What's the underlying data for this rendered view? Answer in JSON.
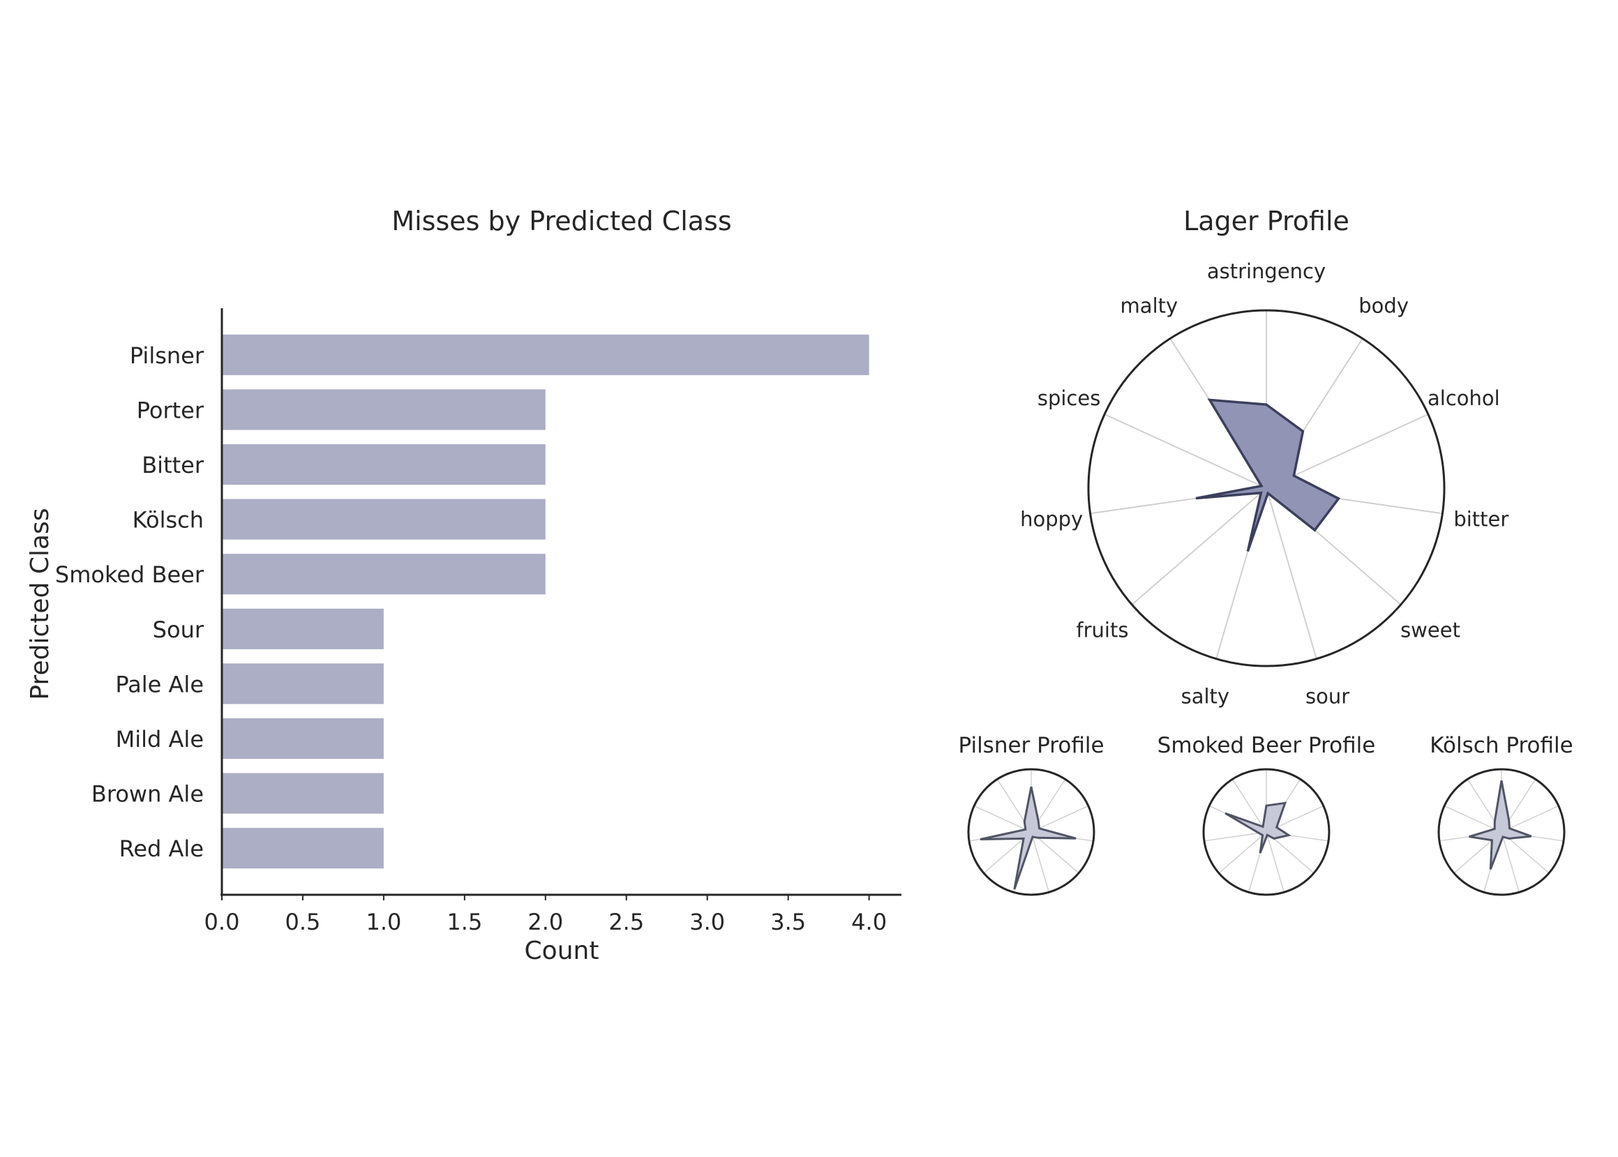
{
  "colors": {
    "bar": "#abaec4",
    "axis": "#262626",
    "text": "#262626",
    "grid": "#d0d0d0",
    "main_fill": "#9194b5",
    "main_stroke": "#3c3f5c",
    "small_fill": "#c7c8d8",
    "small_stroke": "#505464"
  },
  "chart_data": [
    {
      "type": "bar",
      "orientation": "horizontal",
      "title": "Misses by Predicted Class",
      "xlabel": "Count",
      "ylabel": "Predicted Class",
      "categories": [
        "Pilsner",
        "Porter",
        "Bitter",
        "Kölsch",
        "Smoked Beer",
        "Sour",
        "Pale Ale",
        "Mild Ale",
        "Brown Ale",
        "Red Ale"
      ],
      "values": [
        4,
        2,
        2,
        2,
        2,
        1,
        1,
        1,
        1,
        1
      ],
      "xlim": [
        0,
        4.2
      ],
      "xticks": [
        "0.0",
        "0.5",
        "1.0",
        "1.5",
        "2.0",
        "2.5",
        "3.0",
        "3.5",
        "4.0"
      ],
      "grid": false
    },
    {
      "type": "radar",
      "title": "Lager Profile",
      "axes": [
        "astringency",
        "body",
        "alcohol",
        "bitter",
        "sweet",
        "sour",
        "salty",
        "fruits",
        "hoppy",
        "spices",
        "malty"
      ],
      "values": [
        0.47,
        0.38,
        0.17,
        0.41,
        0.36,
        0.03,
        0.37,
        0.04,
        0.4,
        0.03,
        0.59
      ],
      "rmax": 1
    },
    {
      "type": "radar",
      "title": "Pilsner Profile",
      "axes": [
        "astringency",
        "body",
        "alcohol",
        "bitter",
        "sweet",
        "sour",
        "salty",
        "fruits",
        "hoppy",
        "spices",
        "malty"
      ],
      "values": [
        0.72,
        0.21,
        0.14,
        0.72,
        0.14,
        0.08,
        0.95,
        0.16,
        0.82,
        0.1,
        0.2
      ],
      "rmax": 1
    },
    {
      "type": "radar",
      "title": "Smoked Beer Profile",
      "axes": [
        "astringency",
        "body",
        "alcohol",
        "bitter",
        "sweet",
        "sour",
        "salty",
        "fruits",
        "hoppy",
        "spices",
        "malty"
      ],
      "values": [
        0.42,
        0.55,
        0.18,
        0.36,
        0.16,
        0.05,
        0.35,
        0.08,
        0.12,
        0.72,
        0.1
      ],
      "rmax": 1
    },
    {
      "type": "radar",
      "title": "Kölsch Profile",
      "axes": [
        "astringency",
        "body",
        "alcohol",
        "bitter",
        "sweet",
        "sour",
        "salty",
        "fruits",
        "hoppy",
        "spices",
        "malty"
      ],
      "values": [
        0.82,
        0.22,
        0.14,
        0.48,
        0.16,
        0.08,
        0.62,
        0.2,
        0.52,
        0.12,
        0.2
      ],
      "rmax": 1
    }
  ]
}
